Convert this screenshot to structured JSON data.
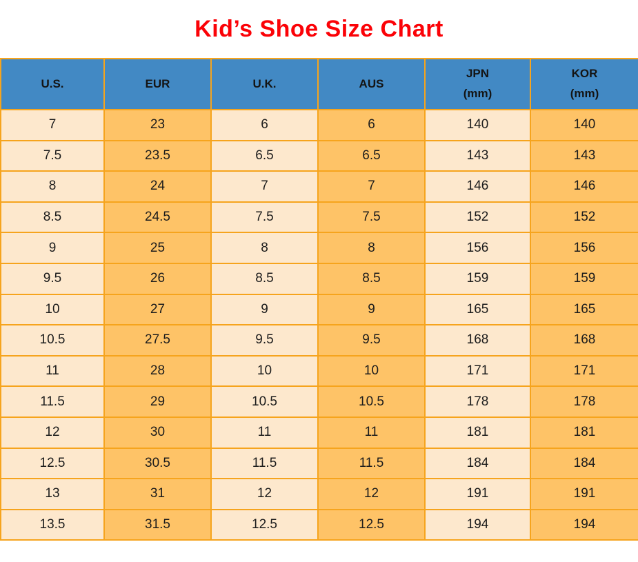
{
  "page": {
    "title": "Kid’s Shoe Size Chart"
  },
  "colors": {
    "title_red": "#fb0207",
    "header_bg": "#4289c4",
    "column_cream": "#fde8cd",
    "column_orange": "#fec367",
    "border_orange": "#f6a41d",
    "text": "#1c1c1c",
    "page_bg": "#ffffff"
  },
  "chart_data": {
    "type": "table",
    "title": "Kid’s Shoe Size Chart",
    "columns": [
      "U.S.",
      "EUR",
      "U.K.",
      "AUS",
      "JPN\n(mm)",
      "KOR\n(mm)"
    ],
    "rows": [
      [
        7,
        23,
        6,
        6,
        140,
        140
      ],
      [
        7.5,
        23.5,
        6.5,
        6.5,
        143,
        143
      ],
      [
        8,
        24,
        7,
        7,
        146,
        146
      ],
      [
        8.5,
        24.5,
        7.5,
        7.5,
        152,
        152
      ],
      [
        9,
        25,
        8,
        8,
        156,
        156
      ],
      [
        9.5,
        26,
        8.5,
        8.5,
        159,
        159
      ],
      [
        10,
        27,
        9,
        9,
        165,
        165
      ],
      [
        10.5,
        27.5,
        9.5,
        9.5,
        168,
        168
      ],
      [
        11,
        28,
        10,
        10,
        171,
        171
      ],
      [
        11.5,
        29,
        10.5,
        10.5,
        178,
        178
      ],
      [
        12,
        30,
        11,
        11,
        181,
        181
      ],
      [
        12.5,
        30.5,
        11.5,
        11.5,
        184,
        184
      ],
      [
        13,
        31,
        12,
        12,
        191,
        191
      ],
      [
        13.5,
        31.5,
        12.5,
        12.5,
        194,
        194
      ]
    ]
  }
}
